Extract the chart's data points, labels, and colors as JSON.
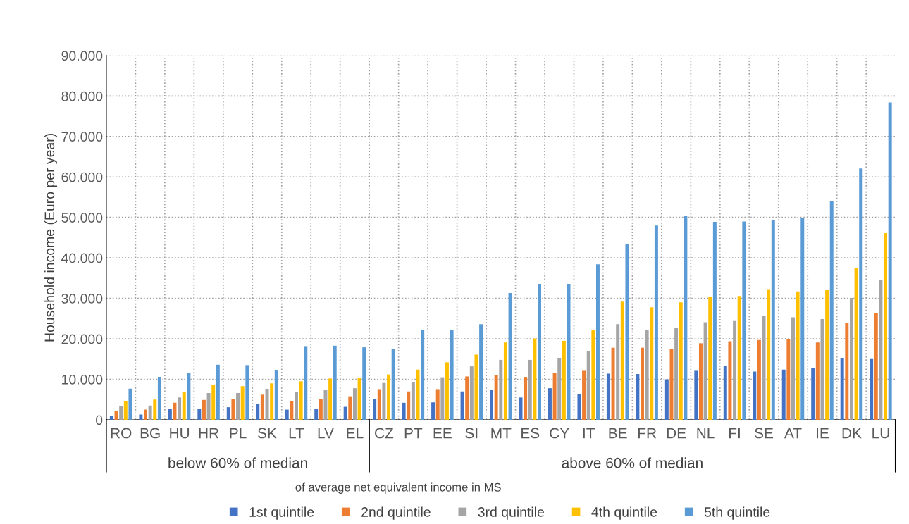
{
  "chart_data": {
    "type": "bar",
    "ylabel": "Household income (Euro per year)",
    "categories": [
      "RO",
      "BG",
      "HU",
      "HR",
      "PL",
      "SK",
      "LT",
      "LV",
      "EL",
      "CZ",
      "PT",
      "EE",
      "SI",
      "MT",
      "ES",
      "CY",
      "IT",
      "BE",
      "FR",
      "DE",
      "NL",
      "FI",
      "SE",
      "AT",
      "IE",
      "DK",
      "LU"
    ],
    "series": [
      {
        "name": "1st quintile",
        "color": "#4472c4",
        "values": [
          1000,
          1300,
          2600,
          2600,
          3100,
          3900,
          2500,
          2600,
          3200,
          5200,
          4200,
          4300,
          7000,
          7300,
          5500,
          7800,
          6300,
          11400,
          11300,
          10000,
          12100,
          13400,
          11900,
          12400,
          12700,
          15200,
          15000
        ]
      },
      {
        "name": "2nd quintile",
        "color": "#ed7d31",
        "values": [
          2200,
          2500,
          4200,
          4900,
          5100,
          6200,
          4700,
          5100,
          5800,
          7400,
          7000,
          7400,
          10700,
          11100,
          10600,
          11600,
          12100,
          17800,
          17800,
          17400,
          18900,
          19400,
          19700,
          20000,
          19100,
          23900,
          26300
        ]
      },
      {
        "name": "3rd quintile",
        "color": "#a5a5a5",
        "values": [
          3300,
          3500,
          5500,
          6600,
          6600,
          7500,
          6800,
          7300,
          7800,
          9100,
          9300,
          10500,
          13200,
          14800,
          14800,
          15200,
          16900,
          23600,
          22200,
          22700,
          24100,
          24400,
          25600,
          25300,
          24900,
          30100,
          34600
        ]
      },
      {
        "name": "4th quintile",
        "color": "#ffc000",
        "values": [
          4600,
          5000,
          6900,
          8600,
          8300,
          9000,
          9500,
          10200,
          10300,
          11200,
          12400,
          14200,
          16100,
          19100,
          20100,
          19500,
          22200,
          29200,
          27800,
          29000,
          30300,
          30600,
          32100,
          31700,
          32000,
          37600,
          46100
        ]
      },
      {
        "name": "5th quintile",
        "color": "#5b9bd5",
        "values": [
          7700,
          10600,
          11500,
          13600,
          13500,
          12200,
          18200,
          18300,
          17900,
          17400,
          22200,
          22200,
          23600,
          31300,
          33600,
          33600,
          38400,
          43400,
          48000,
          50300,
          48900,
          49000,
          49300,
          49900,
          54100,
          62100,
          78400
        ]
      }
    ],
    "annotations": [
      "below 60% of median",
      "above 60% of median",
      "of average net equivalent income in MS"
    ],
    "ylim": [
      0,
      90000
    ],
    "yticks": [
      {
        "value": 0,
        "label": "0"
      },
      {
        "value": 10000,
        "label": "10.000"
      },
      {
        "value": 20000,
        "label": "20.000"
      },
      {
        "value": 30000,
        "label": "30.000"
      },
      {
        "value": 40000,
        "label": "40.000"
      },
      {
        "value": 50000,
        "label": "50.000"
      },
      {
        "value": 60000,
        "label": "60.000"
      },
      {
        "value": 70000,
        "label": "70.000"
      },
      {
        "value": 80000,
        "label": "80.000"
      },
      {
        "value": 90000,
        "label": "90.000"
      }
    ],
    "grid": true,
    "legend": "bottom"
  }
}
